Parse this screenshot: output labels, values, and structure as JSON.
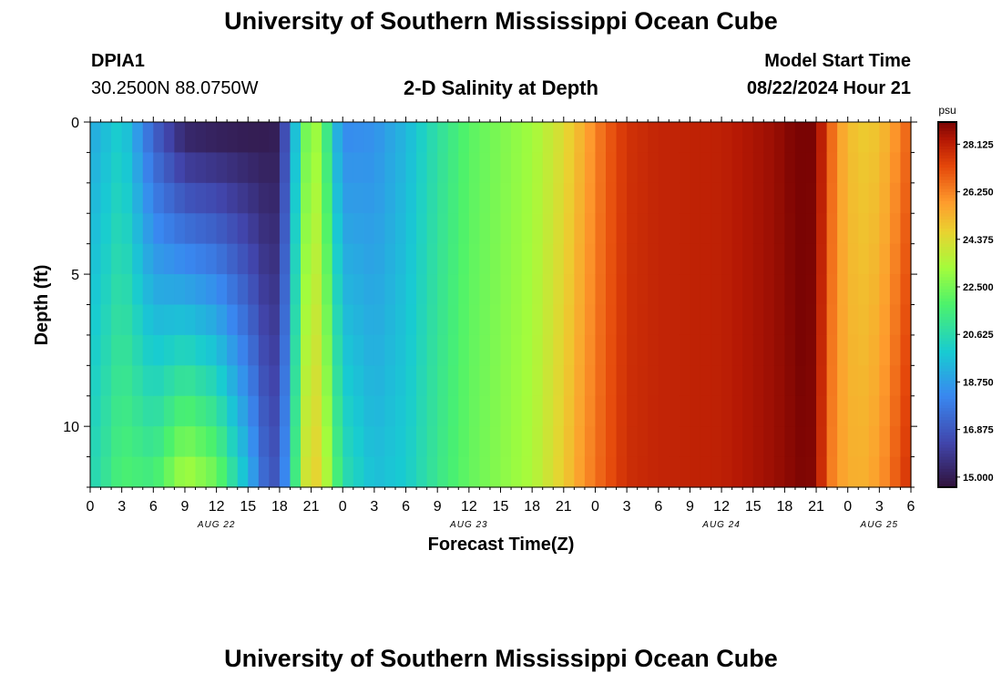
{
  "header": {
    "title": "University of Southern Mississippi Ocean Cube",
    "station_id": "DPIA1",
    "station_coords": "30.2500N  88.0750W",
    "plot_title": "2-D Salinity at Depth",
    "model_start_label": "Model Start Time",
    "model_start_value": "08/22/2024 Hour 21"
  },
  "footer": {
    "title": "University of Southern Mississippi Ocean Cube"
  },
  "chart_data": {
    "type": "heatmap",
    "title": "2-D Salinity at Depth",
    "xlabel": "Forecast Time(Z)",
    "ylabel": "Depth (ft)",
    "x_tick_labels": [
      "0",
      "3",
      "6",
      "9",
      "12",
      "15",
      "18",
      "21",
      "0",
      "3",
      "6",
      "9",
      "12",
      "15",
      "18",
      "21",
      "0",
      "3",
      "6",
      "9",
      "12",
      "15",
      "18",
      "21",
      "0",
      "3",
      "6"
    ],
    "x_date_labels": [
      {
        "label": "AUG 22",
        "hour": 12
      },
      {
        "label": "AUG 23",
        "hour": 36
      },
      {
        "label": "AUG 24",
        "hour": 60
      },
      {
        "label": "AUG 25",
        "hour": 75
      }
    ],
    "xlim_hours": [
      0,
      78
    ],
    "y_tick_labels": [
      "0",
      "5",
      "10"
    ],
    "y_ticks": [
      0,
      5,
      10
    ],
    "ylim": [
      0,
      12
    ],
    "colorbar": {
      "unit": "psu",
      "tick_labels": [
        "28.125",
        "26.250",
        "24.375",
        "22.500",
        "20.625",
        "18.750",
        "16.875",
        "15.000"
      ],
      "range": [
        14.6,
        29.0
      ]
    },
    "depth_rows_ft": [
      0,
      1,
      2,
      3,
      4,
      5,
      6,
      7,
      8,
      9,
      10,
      11,
      12
    ],
    "profiles": [
      {
        "hour": 0,
        "surface": 19.0,
        "bottom": 20.4
      },
      {
        "hour": 3,
        "surface": 20.1,
        "bottom": 21.8
      },
      {
        "hour": 6,
        "surface": 17.0,
        "bottom": 21.6
      },
      {
        "hour": 9,
        "surface": 15.0,
        "bottom": 23.6
      },
      {
        "hour": 12,
        "surface": 14.8,
        "bottom": 22.6
      },
      {
        "hour": 15,
        "surface": 14.8,
        "bottom": 19.5
      },
      {
        "hour": 17,
        "surface": 14.9,
        "bottom": 16.8
      },
      {
        "hour": 18,
        "surface": 15.0,
        "bottom": 17.0
      },
      {
        "hour": 19,
        "surface": 18.0,
        "bottom": 19.5
      },
      {
        "hour": 20,
        "surface": 21.2,
        "bottom": 23.5
      },
      {
        "hour": 21,
        "surface": 23.6,
        "bottom": 24.8
      },
      {
        "hour": 22,
        "surface": 22.5,
        "bottom": 24.5
      },
      {
        "hour": 23,
        "surface": 20.0,
        "bottom": 22.5
      },
      {
        "hour": 24,
        "surface": 18.2,
        "bottom": 20.8
      },
      {
        "hour": 27,
        "surface": 18.4,
        "bottom": 19.6
      },
      {
        "hour": 30,
        "surface": 19.4,
        "bottom": 20.0
      },
      {
        "hour": 33,
        "surface": 20.8,
        "bottom": 21.2
      },
      {
        "hour": 36,
        "surface": 22.0,
        "bottom": 22.2
      },
      {
        "hour": 39,
        "surface": 22.6,
        "bottom": 22.8
      },
      {
        "hour": 42,
        "surface": 23.2,
        "bottom": 23.4
      },
      {
        "hour": 45,
        "surface": 24.4,
        "bottom": 24.8
      },
      {
        "hour": 47,
        "surface": 25.5,
        "bottom": 26.0
      },
      {
        "hour": 49,
        "surface": 26.8,
        "bottom": 27.0
      },
      {
        "hour": 51,
        "surface": 27.7,
        "bottom": 27.8
      },
      {
        "hour": 54,
        "surface": 28.0,
        "bottom": 28.0
      },
      {
        "hour": 60,
        "surface": 28.1,
        "bottom": 28.1
      },
      {
        "hour": 65,
        "surface": 28.6,
        "bottom": 28.6
      },
      {
        "hour": 68,
        "surface": 29.2,
        "bottom": 29.0
      },
      {
        "hour": 69,
        "surface": 28.8,
        "bottom": 28.8
      },
      {
        "hour": 70,
        "surface": 27.5,
        "bottom": 26.8
      },
      {
        "hour": 71,
        "surface": 25.8,
        "bottom": 25.8
      },
      {
        "hour": 73,
        "surface": 24.8,
        "bottom": 25.3
      },
      {
        "hour": 75,
        "surface": 25.0,
        "bottom": 25.8
      },
      {
        "hour": 77,
        "surface": 26.2,
        "bottom": 27.2
      },
      {
        "hour": 78,
        "surface": 27.0,
        "bottom": 27.8
      }
    ]
  }
}
